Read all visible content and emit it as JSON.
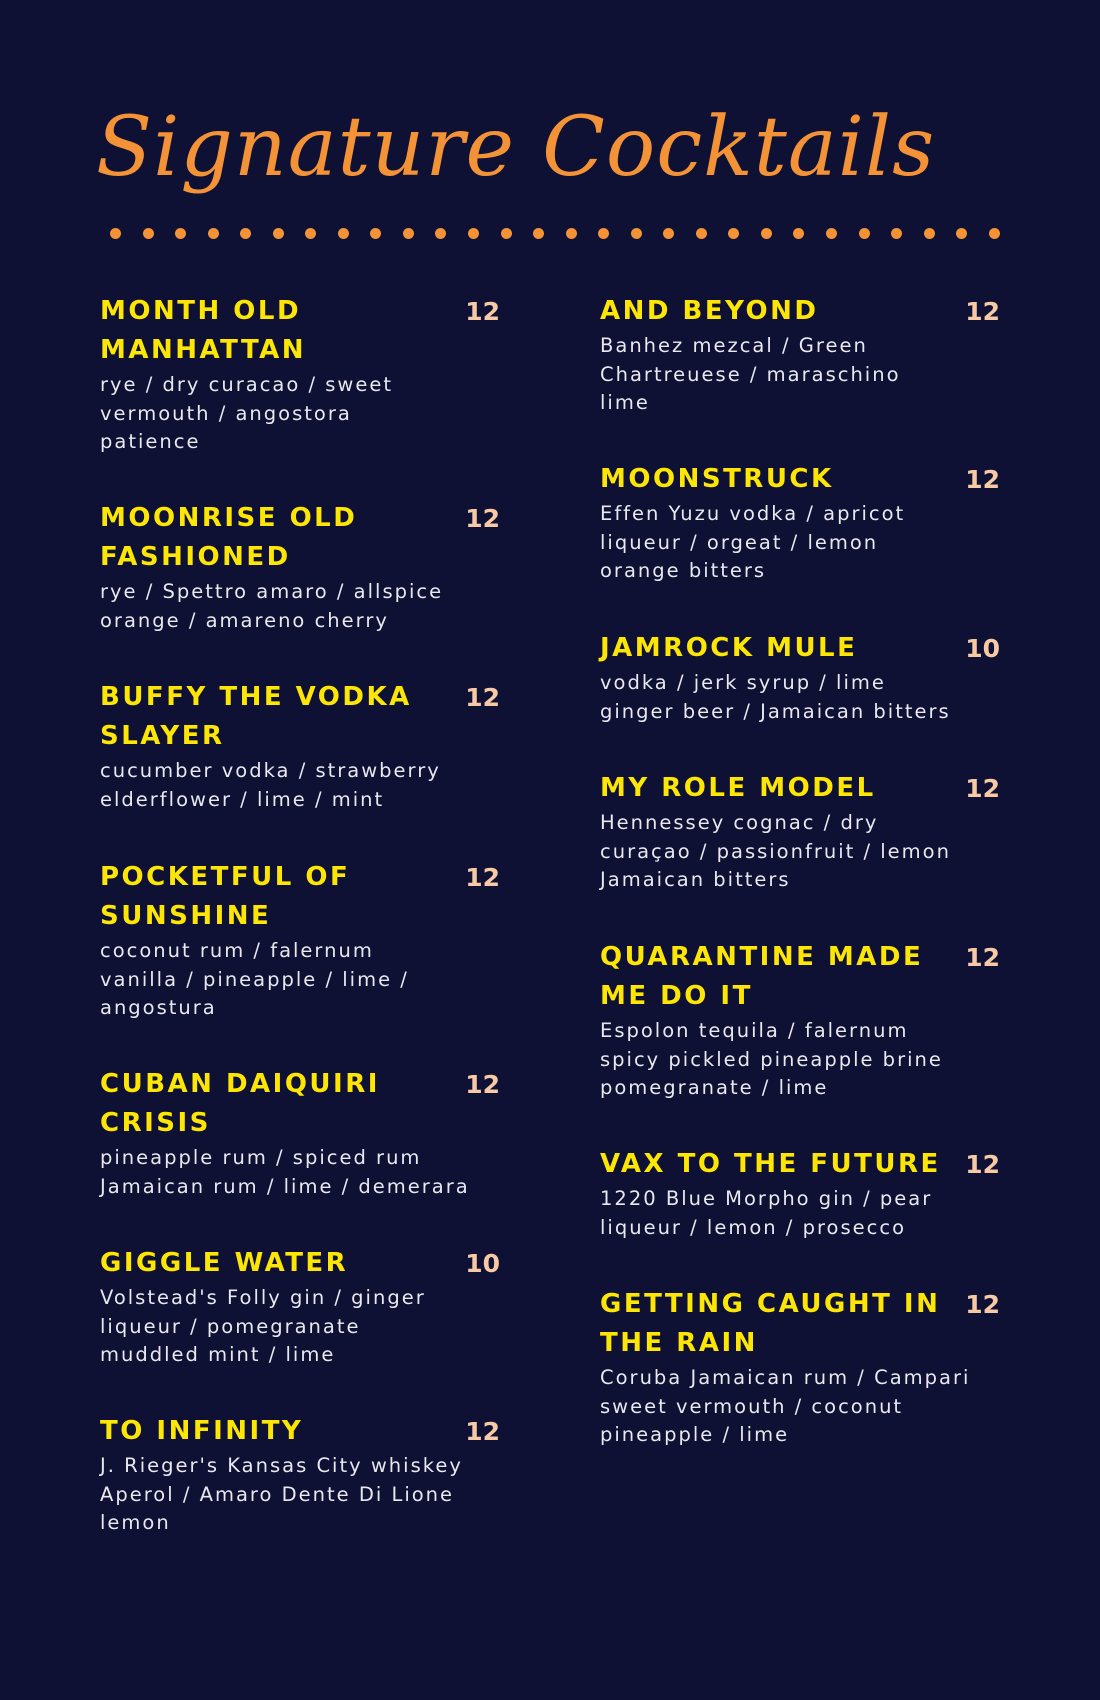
{
  "title": "Signature Cocktails",
  "colors": {
    "background": "#0e1133",
    "title": "#f39237",
    "name": "#ffe600",
    "price": "#f7c9a4",
    "description": "#e8e8ee"
  },
  "left_column": [
    {
      "name": [
        "MONTH OLD",
        "MANHATTAN"
      ],
      "price": "12",
      "description": [
        "rye / dry curacao / sweet",
        "vermouth / angostora",
        "patience"
      ]
    },
    {
      "name": [
        "MOONRISE OLD",
        "FASHIONED"
      ],
      "price": "12",
      "description": [
        "rye / Spettro amaro / allspice",
        "orange / amareno cherry"
      ]
    },
    {
      "name": [
        "BUFFY THE VODKA",
        "SLAYER"
      ],
      "price": "12",
      "description": [
        "cucumber vodka / strawberry",
        "elderflower / lime / mint"
      ]
    },
    {
      "name": [
        "POCKETFUL OF",
        "SUNSHINE"
      ],
      "price": "12",
      "description": [
        "coconut rum / falernum",
        "vanilla / pineapple / lime /",
        "angostura"
      ]
    },
    {
      "name": [
        "CUBAN DAIQUIRI",
        "CRISIS"
      ],
      "price": "12",
      "description": [
        "pineapple rum / spiced rum",
        "Jamaican rum / lime / demerara"
      ]
    },
    {
      "name": [
        "GIGGLE WATER"
      ],
      "price": "10",
      "description": [
        "Volstead's Folly gin / ginger",
        "liqueur / pomegranate",
        "muddled mint / lime"
      ]
    },
    {
      "name": [
        "TO INFINITY"
      ],
      "price": "12",
      "description": [
        "J. Rieger's Kansas City whiskey",
        "Aperol / Amaro Dente Di Lione",
        "lemon"
      ]
    }
  ],
  "right_column": [
    {
      "name": [
        "AND BEYOND"
      ],
      "price": "12",
      "description": [
        "Banhez mezcal / Green",
        "Chartreuese / maraschino",
        "lime"
      ]
    },
    {
      "name": [
        "MOONSTRUCK"
      ],
      "price": "12",
      "description": [
        "Effen Yuzu vodka / apricot",
        "liqueur / orgeat / lemon",
        "orange bitters"
      ]
    },
    {
      "name": [
        "JAMROCK MULE"
      ],
      "price": "10",
      "description": [
        "vodka / jerk syrup / lime",
        "ginger beer / Jamaican bitters"
      ]
    },
    {
      "name": [
        "MY ROLE MODEL"
      ],
      "price": "12",
      "description": [
        "Hennessey cognac / dry",
        "curaçao / passionfruit / lemon",
        "Jamaican bitters"
      ]
    },
    {
      "name": [
        "QUARANTINE MADE",
        "ME DO IT"
      ],
      "price": "12",
      "description": [
        "Espolon tequila / falernum",
        "spicy pickled pineapple brine",
        "pomegranate / lime"
      ]
    },
    {
      "name": [
        "VAX TO THE FUTURE"
      ],
      "price": "12",
      "description": [
        "1220 Blue Morpho gin / pear",
        "liqueur / lemon / prosecco"
      ]
    },
    {
      "name": [
        "GETTING CAUGHT IN",
        "THE RAIN"
      ],
      "price": "12",
      "description": [
        "Coruba Jamaican rum / Campari",
        "sweet vermouth / coconut",
        "pineapple / lime"
      ]
    }
  ]
}
